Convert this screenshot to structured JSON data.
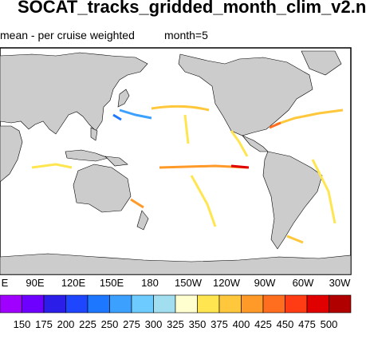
{
  "title": "SOCAT_tracks_gridded_month_clim_v2.n",
  "subtitle": "mean - per cruise weighted",
  "month_label": "month=5",
  "lon_labels": [
    "E",
    "90E",
    "120E",
    "150E",
    "180",
    "150W",
    "120W",
    "90W",
    "60W",
    "30W"
  ],
  "colorbar": {
    "labels": [
      "150",
      "175",
      "200",
      "225",
      "250",
      "275",
      "300",
      "325",
      "350",
      "375",
      "400",
      "425",
      "450",
      "475",
      "500"
    ],
    "colors": [
      "#a000ff",
      "#6e00ff",
      "#2a1ee8",
      "#1e46ff",
      "#1e78ff",
      "#3ca0ff",
      "#6ecbff",
      "#a0def0",
      "#ffffd0",
      "#ffe650",
      "#ffc83c",
      "#ff9a28",
      "#ff6e1e",
      "#ff3c14",
      "#e00000",
      "#b00000"
    ]
  },
  "colors": {
    "land": "#cccccc",
    "coast": "#000000"
  }
}
